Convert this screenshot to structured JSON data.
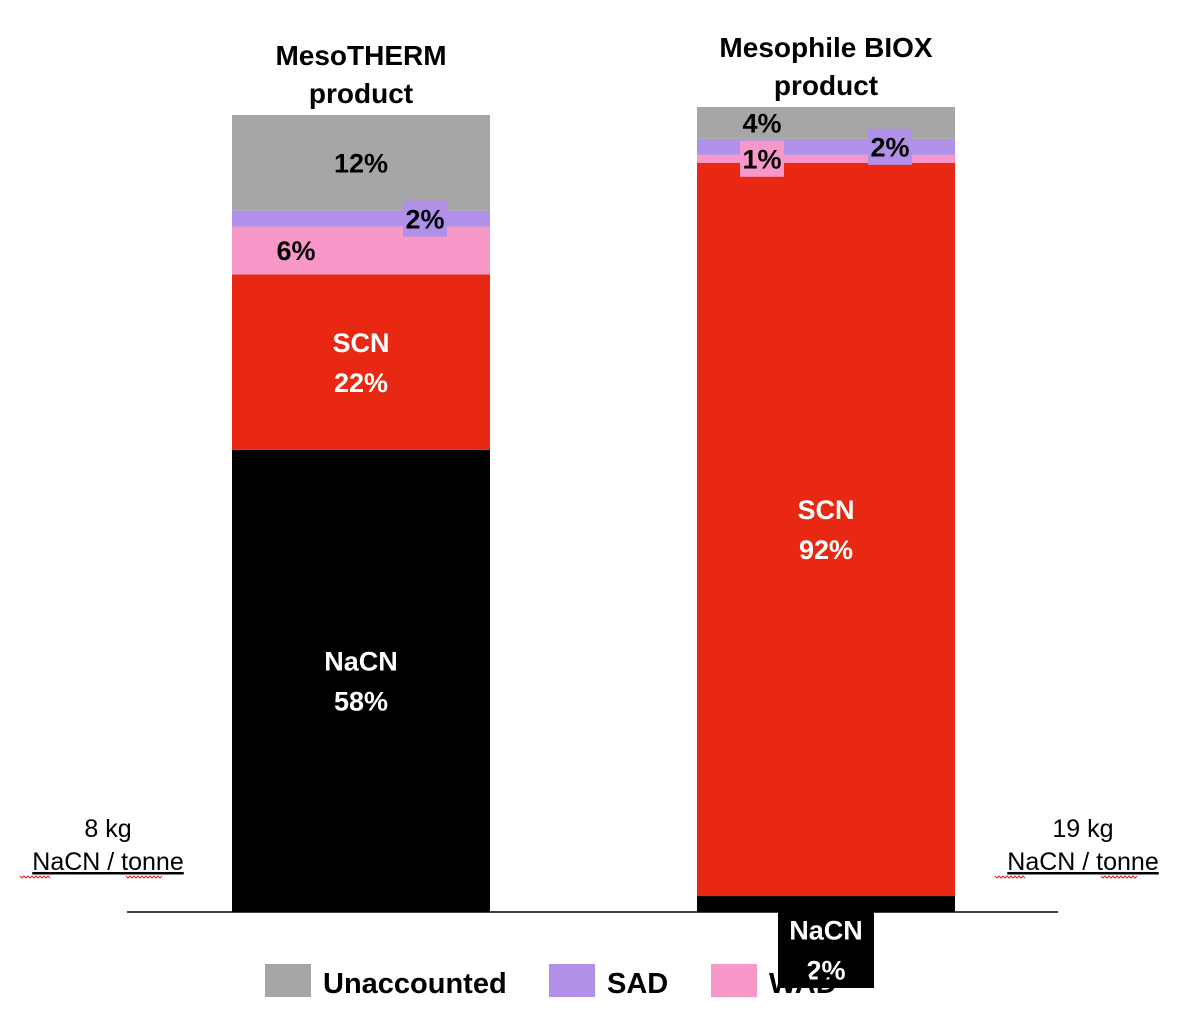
{
  "chart_data": {
    "type": "bar",
    "stacked": true,
    "orientation": "vertical",
    "normalized_to": 100,
    "categories": [
      "MesoTHERM product",
      "Mesophile BIOX product"
    ],
    "category_label_lines": [
      [
        "MesoTHERM",
        "product"
      ],
      [
        "Mesophile BIOX",
        "product"
      ]
    ],
    "series": [
      {
        "key": "NaCN",
        "label": "NaCN",
        "values": [
          58,
          2
        ],
        "color": "#000000",
        "label_color": "#ffffff",
        "in_legend": false
      },
      {
        "key": "SCN",
        "label": "SCN",
        "values": [
          22,
          92
        ],
        "color": "#e82813",
        "label_color": "#ffffff",
        "in_legend": false
      },
      {
        "key": "WAD",
        "name": "WAD",
        "values": [
          6,
          1
        ],
        "color": "#f898c8",
        "label_color": "#000000",
        "in_legend": true
      },
      {
        "key": "SAD",
        "name": "SAD",
        "values": [
          2,
          2
        ],
        "color": "#b090e8",
        "label_color": "#000000",
        "in_legend": true
      },
      {
        "key": "Unaccounted",
        "name": "Unaccounted",
        "values": [
          12,
          4
        ],
        "color": "#a6a6a6",
        "label_color": "#000000",
        "in_legend": true
      }
    ],
    "data_labels": [
      [
        "NaCN\n58%",
        "SCN\n22%",
        "6%",
        "2%",
        "12%"
      ],
      [
        "NaCN\n2%",
        "SCN\n92%",
        "1%",
        "2%",
        "4%"
      ]
    ],
    "annotations": [
      {
        "bar": 0,
        "lines": [
          "8 kg",
          "NaCN / tonne"
        ]
      },
      {
        "bar": 1,
        "lines": [
          "19 kg",
          "NaCN / tonne"
        ]
      }
    ],
    "legend": {
      "position": "bottom",
      "order": [
        "Unaccounted",
        "SAD",
        "WAD"
      ]
    },
    "grid": false,
    "y_axis_visible": false,
    "ylim": [
      0,
      100
    ]
  }
}
